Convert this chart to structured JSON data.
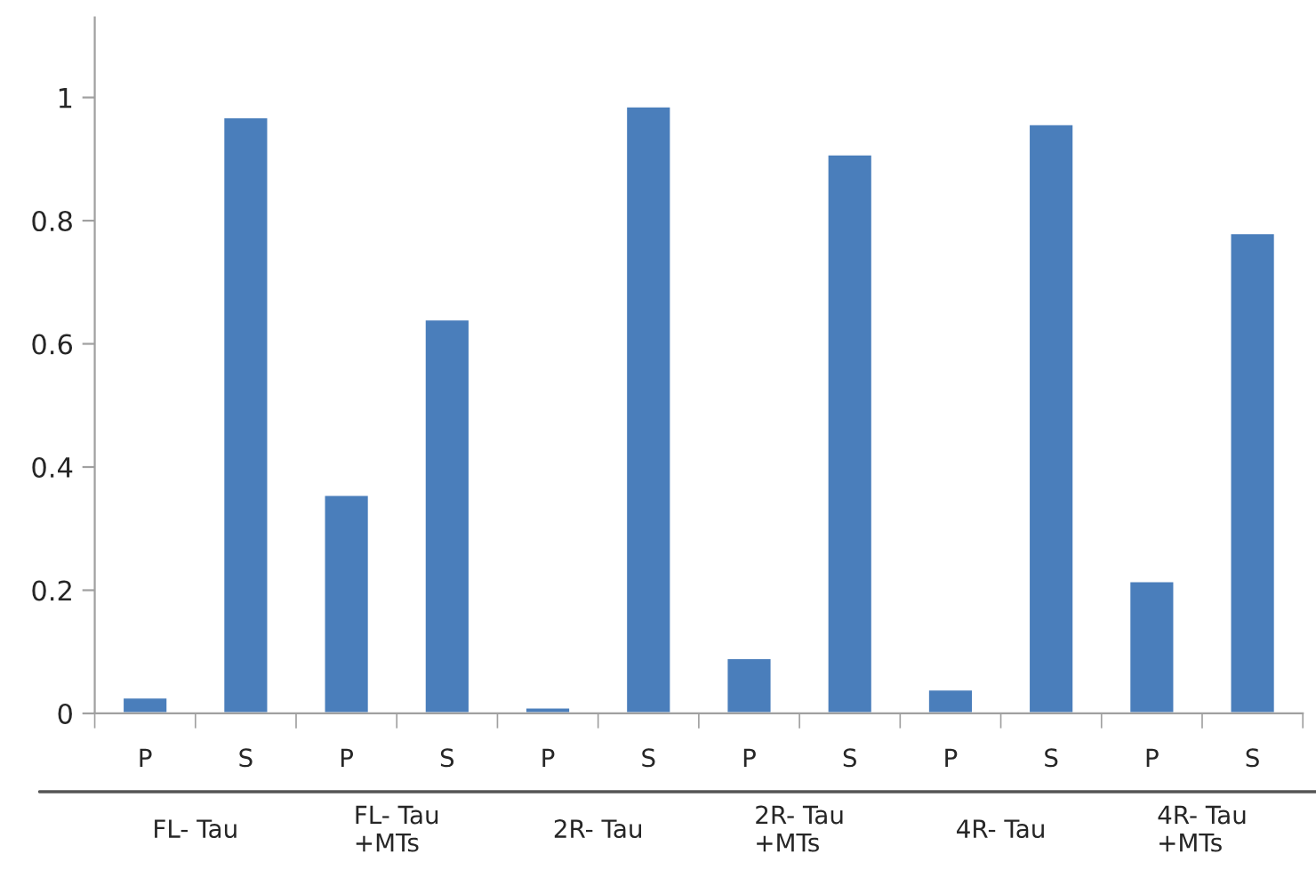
{
  "chart_data": {
    "type": "bar",
    "categories": [
      "P",
      "S",
      "P",
      "S",
      "P",
      "S",
      "P",
      "S",
      "P",
      "S",
      "P",
      "S"
    ],
    "values": [
      0.026,
      0.968,
      0.355,
      0.64,
      0.01,
      0.986,
      0.09,
      0.908,
      0.039,
      0.957,
      0.215,
      0.78
    ],
    "color": "#4a7ebb",
    "ylim": [
      0,
      1.13
    ],
    "yticks": [
      0,
      0.2,
      0.4,
      0.6,
      0.8,
      1
    ],
    "annotations": [
      "FL- Tau",
      "FL- Tau\n+MTs",
      "2R- Tau",
      "2R- Tau\n+MTs",
      "4R- Tau",
      "4R- Tau\n+MTs"
    ],
    "grid": false
  }
}
